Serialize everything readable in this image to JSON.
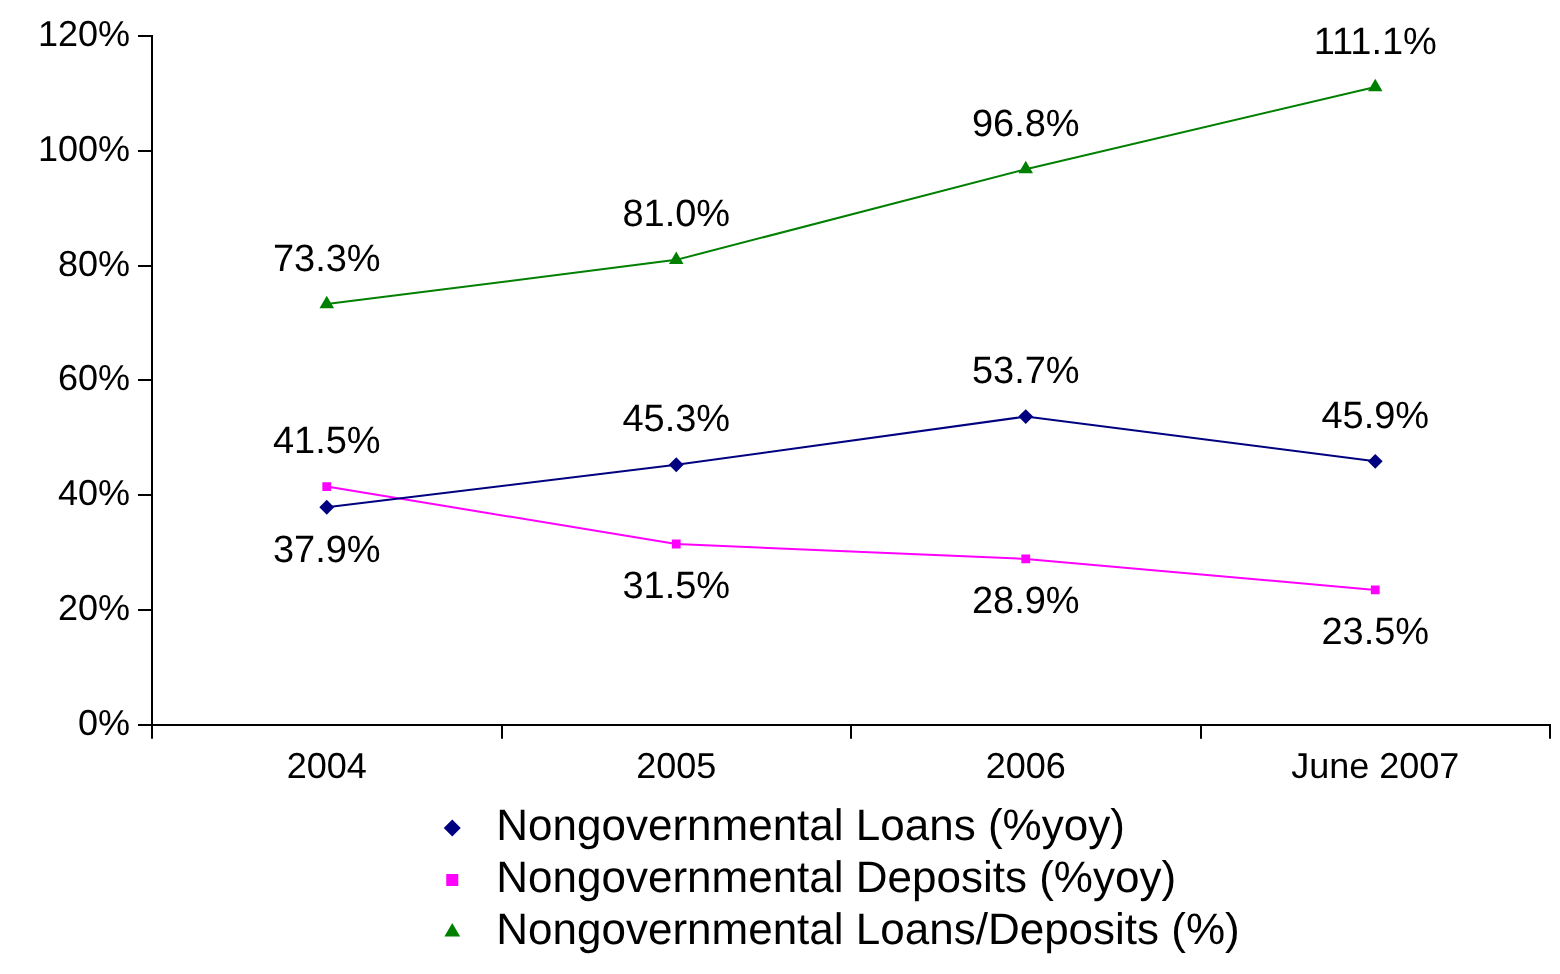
{
  "chart_data": {
    "type": "line",
    "categories": [
      "2004",
      "2005",
      "2006",
      "June 2007"
    ],
    "series": [
      {
        "name": "Nongovernmental Loans (%yoy)",
        "color": "#000080",
        "marker": "diamond",
        "values": [
          37.9,
          45.3,
          53.7,
          45.9
        ],
        "value_labels": [
          "37.9%",
          "45.3%",
          "53.7%",
          "45.9%"
        ]
      },
      {
        "name": "Nongovernmental Deposits (%yoy)",
        "color": "#ff00ff",
        "marker": "square",
        "values": [
          41.5,
          31.5,
          28.9,
          23.5
        ],
        "value_labels": [
          "41.5%",
          "31.5%",
          "28.9%",
          "23.5%"
        ]
      },
      {
        "name": "Nongovernmental Loans/Deposits (%)",
        "color": "#008000",
        "marker": "triangle",
        "values": [
          73.3,
          81.0,
          96.8,
          111.1
        ],
        "value_labels": [
          "73.3%",
          "81.0%",
          "96.8%",
          "111.1%"
        ]
      }
    ],
    "ylim": [
      0,
      120
    ],
    "yticks": [
      {
        "value": 0,
        "label": "0%"
      },
      {
        "value": 20,
        "label": "20%"
      },
      {
        "value": 40,
        "label": "40%"
      },
      {
        "value": 60,
        "label": "60%"
      },
      {
        "value": 80,
        "label": "80%"
      },
      {
        "value": 100,
        "label": "100%"
      },
      {
        "value": 120,
        "label": "120%"
      }
    ],
    "legend": "bottom"
  }
}
